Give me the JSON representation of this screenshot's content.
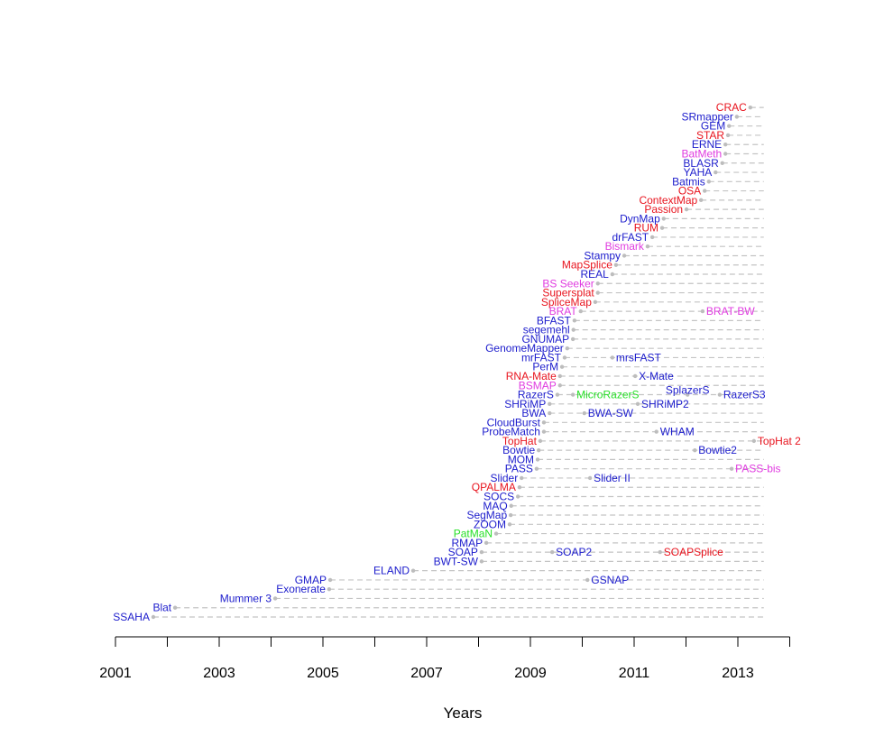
{
  "chart_data": {
    "type": "scatter",
    "title": "",
    "xlabel": "Years",
    "ylabel": "",
    "xlim": [
      2001,
      2014
    ],
    "x_tick_labels": [
      "2001",
      "2003",
      "2005",
      "2007",
      "2009",
      "2011",
      "2013"
    ],
    "x_ticks": [
      2001,
      2002,
      2003,
      2004,
      2005,
      2006,
      2007,
      2008,
      2009,
      2010,
      2011,
      2012,
      2013,
      2014
    ],
    "line_end": 2013.5,
    "grid": false,
    "palette": {
      "blue": "#1c1ccc",
      "red": "#e8141e",
      "magenta": "#e03ce0",
      "green": "#28e028",
      "point": "#bdbdbd"
    },
    "rows": [
      {
        "name": "SSAHA",
        "year": 2001.73,
        "color": "blue"
      },
      {
        "name": "Blat",
        "year": 2002.15,
        "color": "blue"
      },
      {
        "name": "Mummer 3",
        "year": 2004.08,
        "color": "blue"
      },
      {
        "name": "Exonerate",
        "year": 2005.12,
        "color": "blue"
      },
      {
        "name": "GMAP",
        "year": 2005.14,
        "color": "blue",
        "successors": [
          {
            "name": "GSNAP",
            "year": 2010.1,
            "color": "blue"
          }
        ]
      },
      {
        "name": "ELAND",
        "year": 2006.74,
        "color": "blue"
      },
      {
        "name": "BWT-SW",
        "year": 2008.06,
        "color": "blue"
      },
      {
        "name": "SOAP",
        "year": 2008.06,
        "color": "blue",
        "successors": [
          {
            "name": "SOAP2",
            "year": 2009.42,
            "color": "blue"
          },
          {
            "name": "SOAPSplice",
            "year": 2011.5,
            "color": "red"
          }
        ]
      },
      {
        "name": "RMAP",
        "year": 2008.15,
        "color": "blue"
      },
      {
        "name": "PatMaN",
        "year": 2008.34,
        "color": "green"
      },
      {
        "name": "ZOOM",
        "year": 2008.6,
        "color": "blue"
      },
      {
        "name": "SegMap",
        "year": 2008.62,
        "color": "blue"
      },
      {
        "name": "MAQ",
        "year": 2008.63,
        "color": "blue"
      },
      {
        "name": "SOCS",
        "year": 2008.76,
        "color": "blue"
      },
      {
        "name": "QPALMA",
        "year": 2008.79,
        "color": "red"
      },
      {
        "name": "Slider",
        "year": 2008.83,
        "color": "blue",
        "successors": [
          {
            "name": "Slider II",
            "year": 2010.15,
            "color": "blue"
          }
        ]
      },
      {
        "name": "PASS",
        "year": 2009.12,
        "color": "blue",
        "successors": [
          {
            "name": "PASS-bis",
            "year": 2012.88,
            "color": "magenta"
          }
        ]
      },
      {
        "name": "MOM",
        "year": 2009.14,
        "color": "blue"
      },
      {
        "name": "Bowtie",
        "year": 2009.16,
        "color": "blue",
        "successors": [
          {
            "name": "Bowtie2",
            "year": 2012.17,
            "color": "blue"
          }
        ]
      },
      {
        "name": "TopHat",
        "year": 2009.19,
        "color": "red",
        "successors": [
          {
            "name": "TopHat 2",
            "year": 2013.31,
            "color": "red"
          }
        ]
      },
      {
        "name": "ProbeMatch",
        "year": 2009.26,
        "color": "blue",
        "successors": [
          {
            "name": "WHAM",
            "year": 2011.43,
            "color": "blue"
          }
        ]
      },
      {
        "name": "CloudBurst",
        "year": 2009.26,
        "color": "blue"
      },
      {
        "name": "BWA",
        "year": 2009.37,
        "color": "blue",
        "successors": [
          {
            "name": "BWA-SW",
            "year": 2010.04,
            "color": "blue"
          }
        ]
      },
      {
        "name": "SHRiMP",
        "year": 2009.37,
        "color": "blue",
        "successors": [
          {
            "name": "SHRiMP2",
            "year": 2011.07,
            "color": "blue"
          }
        ]
      },
      {
        "name": "RazerS",
        "year": 2009.52,
        "color": "blue",
        "successors": [
          {
            "name": "MicroRazerS",
            "year": 2009.82,
            "color": "green"
          },
          {
            "name": "SplazerS",
            "year": 2012.03,
            "color": "blue"
          },
          {
            "name": "RazerS3",
            "year": 2012.65,
            "color": "blue"
          }
        ]
      },
      {
        "name": "BSMAP",
        "year": 2009.57,
        "color": "magenta"
      },
      {
        "name": "RNA-Mate",
        "year": 2009.57,
        "color": "red",
        "successors": [
          {
            "name": "X-Mate",
            "year": 2011.02,
            "color": "blue"
          }
        ]
      },
      {
        "name": "PerM",
        "year": 2009.61,
        "color": "blue"
      },
      {
        "name": "mrFAST",
        "year": 2009.66,
        "color": "blue",
        "successors": [
          {
            "name": "mrsFAST",
            "year": 2010.58,
            "color": "blue"
          }
        ]
      },
      {
        "name": "GenomeMapper",
        "year": 2009.71,
        "color": "blue"
      },
      {
        "name": "GNUMAP",
        "year": 2009.82,
        "color": "blue"
      },
      {
        "name": "segemehl",
        "year": 2009.83,
        "color": "blue"
      },
      {
        "name": "BFAST",
        "year": 2009.85,
        "color": "blue"
      },
      {
        "name": "BRAT",
        "year": 2009.97,
        "color": "magenta",
        "successors": [
          {
            "name": "BRAT-BW",
            "year": 2012.32,
            "color": "magenta"
          }
        ]
      },
      {
        "name": "SpliceMap",
        "year": 2010.25,
        "color": "red"
      },
      {
        "name": "Supersplat",
        "year": 2010.3,
        "color": "red"
      },
      {
        "name": "BS Seeker",
        "year": 2010.3,
        "color": "magenta"
      },
      {
        "name": "REAL",
        "year": 2010.58,
        "color": "blue"
      },
      {
        "name": "MapSplice",
        "year": 2010.65,
        "color": "red"
      },
      {
        "name": "Stampy",
        "year": 2010.81,
        "color": "blue"
      },
      {
        "name": "Bismark",
        "year": 2011.26,
        "color": "magenta"
      },
      {
        "name": "drFAST",
        "year": 2011.35,
        "color": "blue"
      },
      {
        "name": "RUM",
        "year": 2011.54,
        "color": "red"
      },
      {
        "name": "DynMap",
        "year": 2011.57,
        "color": "blue"
      },
      {
        "name": "Passion",
        "year": 2012.01,
        "color": "red"
      },
      {
        "name": "ContextMap",
        "year": 2012.29,
        "color": "red"
      },
      {
        "name": "OSA",
        "year": 2012.36,
        "color": "red"
      },
      {
        "name": "Batmis",
        "year": 2012.44,
        "color": "blue"
      },
      {
        "name": "YAHA",
        "year": 2012.57,
        "color": "blue"
      },
      {
        "name": "BLASR",
        "year": 2012.7,
        "color": "blue"
      },
      {
        "name": "BatMeth",
        "year": 2012.76,
        "color": "magenta"
      },
      {
        "name": "ERNE",
        "year": 2012.76,
        "color": "blue"
      },
      {
        "name": "STAR",
        "year": 2012.81,
        "color": "red"
      },
      {
        "name": "GEM",
        "year": 2012.83,
        "color": "blue"
      },
      {
        "name": "SRmapper",
        "year": 2012.98,
        "color": "blue"
      },
      {
        "name": "CRAC",
        "year": 2013.24,
        "color": "red"
      }
    ]
  }
}
